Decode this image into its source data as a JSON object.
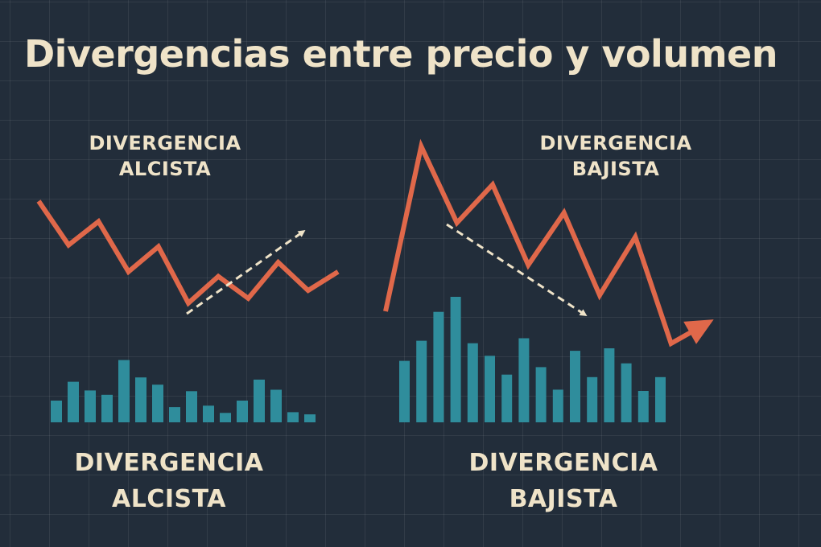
{
  "title": "Divergencias entre precio y volumen",
  "panels": [
    {
      "top_label": [
        "DIVERGENCIA",
        "ALCISTA"
      ],
      "bottom_label": [
        "DIVERGENCIA",
        "ALCISTA"
      ]
    },
    {
      "top_label": [
        "DIVERGENCIA",
        "BAJISTA"
      ],
      "bottom_label": [
        "DIVERGENCIA",
        "BAJISTA"
      ]
    }
  ],
  "colors": {
    "background": "#222d3a",
    "grid": "#37414d",
    "price_line": "#e0684a",
    "volume_bars": "#2f8d9c",
    "trend_arrow": "#efe3c8",
    "text": "#efe3c8"
  },
  "chart_data": [
    {
      "type": "line",
      "title": "",
      "grid": true,
      "price": [
        100,
        72,
        87,
        55,
        71,
        35,
        52,
        38,
        61,
        43,
        55
      ],
      "volume": [
        30,
        56,
        44,
        38,
        86,
        62,
        52,
        21,
        43,
        23,
        13,
        30,
        59,
        45,
        14,
        11
      ],
      "trend_arrow": "up"
    },
    {
      "type": "line",
      "title": "",
      "grid": true,
      "price": [
        18,
        100,
        62,
        81,
        41,
        67,
        26,
        55,
        2,
        12
      ],
      "volume": [
        49,
        65,
        88,
        100,
        63,
        53,
        38,
        67,
        44,
        26,
        57,
        36,
        59,
        47,
        25,
        36
      ],
      "trend_arrow": "down"
    }
  ]
}
